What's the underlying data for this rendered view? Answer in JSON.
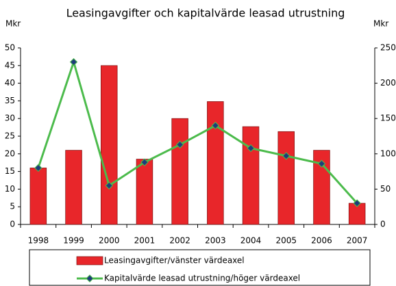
{
  "chart_data": {
    "type": "bar_line",
    "title": "Leasingavgifter och kapitalvärde leasad utrustning",
    "ylabel": "Mkr",
    "y2label": "Mkr",
    "categories": [
      "1998",
      "1999",
      "2000",
      "2001",
      "2002",
      "2003",
      "2004",
      "2005",
      "2006",
      "2007"
    ],
    "series": [
      {
        "name": "Leasingavgifter/vänster värdeaxel",
        "type": "bar",
        "color": "#e8262a",
        "axis": "y",
        "values": [
          16,
          21,
          45,
          18.5,
          30,
          34.8,
          27.7,
          26.3,
          21,
          6
        ]
      },
      {
        "name": "Kapitalvärde leasad utrustning/höger värdeaxel",
        "type": "line",
        "color": "#4cbb4c",
        "marker_color": "#1f3c7a",
        "axis": "y2",
        "values": [
          80,
          230,
          55,
          88,
          113,
          140,
          108,
          97,
          86,
          30
        ]
      }
    ],
    "ylim": [
      0,
      50
    ],
    "yticks": [
      0,
      5,
      10,
      15,
      20,
      25,
      30,
      35,
      40,
      45,
      50
    ],
    "y2lim": [
      0,
      250
    ],
    "y2ticks": [
      0,
      50,
      100,
      150,
      200,
      250
    ],
    "legend": "bottom"
  }
}
